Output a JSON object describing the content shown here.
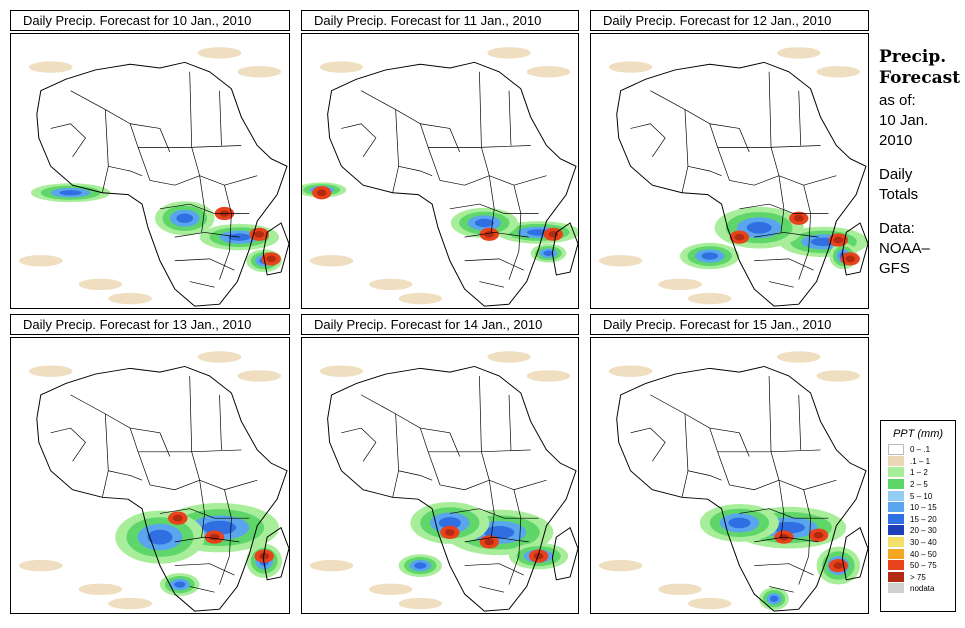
{
  "panels": [
    {
      "title": "Daily Precip. Forecast for  10 Jan., 2010"
    },
    {
      "title": "Daily Precip. Forecast for  11 Jan., 2010"
    },
    {
      "title": "Daily Precip. Forecast for  12 Jan., 2010"
    },
    {
      "title": "Daily Precip. Forecast for  13 Jan., 2010"
    },
    {
      "title": "Daily Precip. Forecast for  14 Jan., 2010"
    },
    {
      "title": "Daily Precip. Forecast for  15 Jan., 2010"
    }
  ],
  "sidebar": {
    "title_line1": "Precip.",
    "title_line2": "Forecast",
    "asof": "as of:",
    "date_line1": "10 Jan.",
    "date_line2": "2010",
    "daily_line1": "Daily",
    "daily_line2": "Totals",
    "data_line1": "Data:",
    "data_line2": "NOAA–",
    "data_line3": "GFS"
  },
  "legend": {
    "title": "PPT (mm)",
    "items": [
      {
        "label": "0 – .1",
        "color": "#ffffff"
      },
      {
        "label": ".1 – 1",
        "color": "#ecd8b4"
      },
      {
        "label": "1 – 2",
        "color": "#a8ee9a"
      },
      {
        "label": "2 – 5",
        "color": "#5fd66a"
      },
      {
        "label": "5 – 10",
        "color": "#94ccf2"
      },
      {
        "label": "10 – 15",
        "color": "#5aa6ee"
      },
      {
        "label": "15 – 20",
        "color": "#2f6fe2"
      },
      {
        "label": "20 – 30",
        "color": "#1f3fb8"
      },
      {
        "label": "30 – 40",
        "color": "#f3e06a"
      },
      {
        "label": "40 – 50",
        "color": "#f5a623"
      },
      {
        "label": "50 – 75",
        "color": "#e8421b"
      },
      {
        "label": "> 75",
        "color": "#b22a12"
      },
      {
        "label": "nodata",
        "color": "#cfcfcf"
      }
    ]
  }
}
